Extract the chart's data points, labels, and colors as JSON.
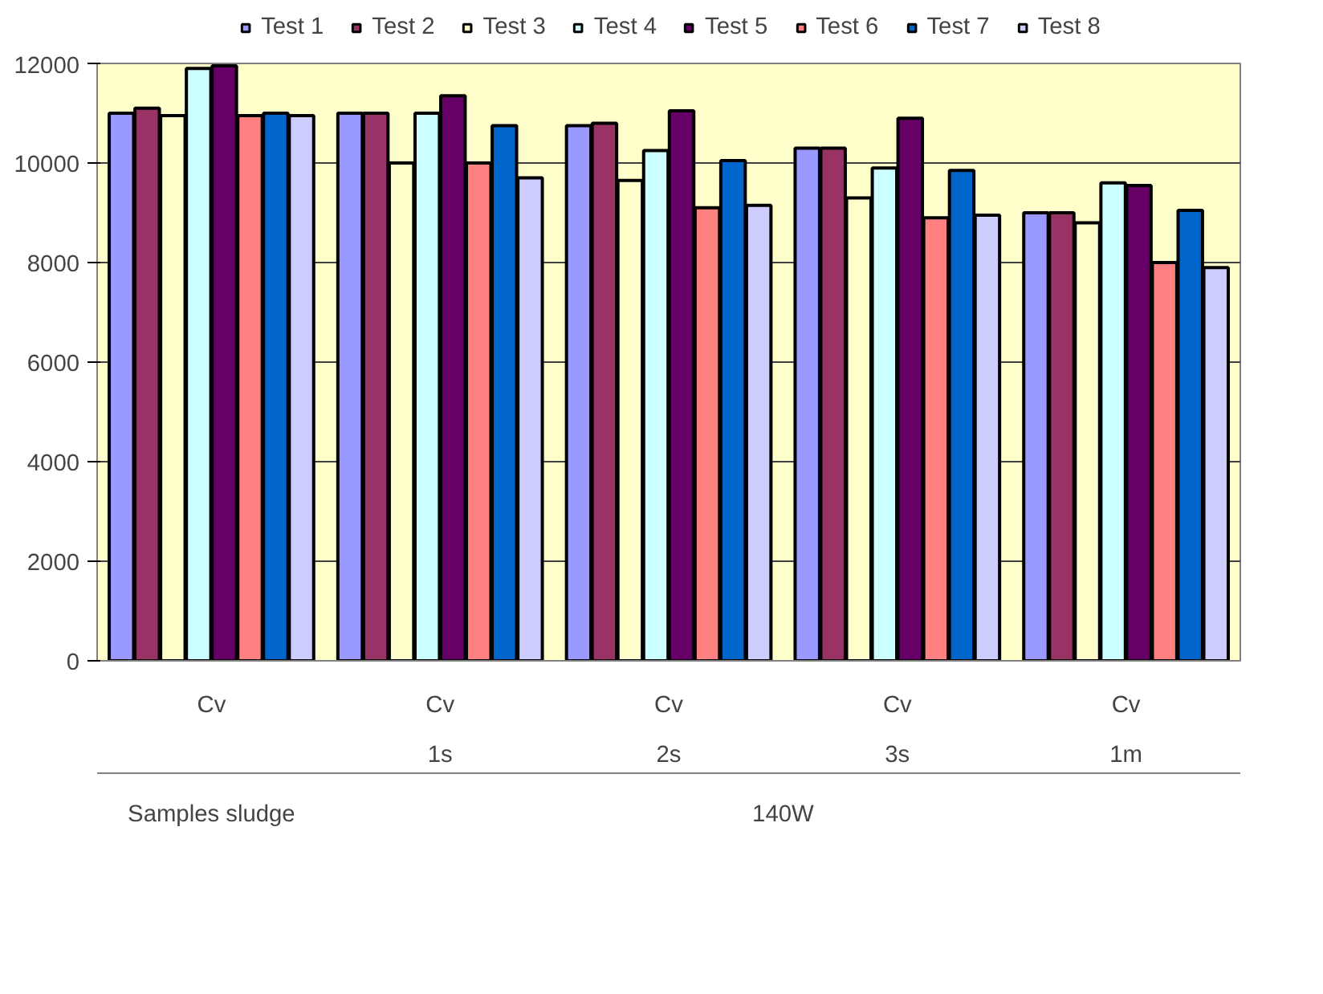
{
  "chart_data": {
    "type": "bar",
    "categories": [
      "Cv",
      "Cv\n1s",
      "Cv\n2s",
      "Cv\n3s",
      "Cv\n1m"
    ],
    "series": [
      {
        "name": "Test 1",
        "color": "#9999ff",
        "values": [
          11000,
          11000,
          10750,
          10300,
          9000
        ]
      },
      {
        "name": "Test 2",
        "color": "#993366",
        "values": [
          11100,
          11000,
          10800,
          10300,
          9000
        ]
      },
      {
        "name": "Test 3",
        "color": "#ffffcc",
        "values": [
          10950,
          10000,
          9650,
          9300,
          8800
        ]
      },
      {
        "name": "Test 4",
        "color": "#ccffff",
        "values": [
          11900,
          11000,
          10250,
          9900,
          9600
        ]
      },
      {
        "name": "Test 5",
        "color": "#660066",
        "values": [
          11950,
          11350,
          11050,
          10900,
          9550
        ]
      },
      {
        "name": "Test 6",
        "color": "#ff8080",
        "values": [
          10950,
          10000,
          9100,
          8900,
          8000
        ]
      },
      {
        "name": "Test 7",
        "color": "#0066cc",
        "values": [
          11000,
          10750,
          10050,
          9850,
          9050
        ]
      },
      {
        "name": "Test 8",
        "color": "#ccccff",
        "values": [
          10950,
          9700,
          9150,
          8950,
          7900
        ]
      }
    ],
    "annotations": [
      "Samples sludge",
      "140W"
    ],
    "ylim": [
      0,
      12000
    ],
    "yticks": [
      0,
      2000,
      4000,
      6000,
      8000,
      10000,
      12000
    ],
    "grid": "y",
    "legend": "top"
  }
}
